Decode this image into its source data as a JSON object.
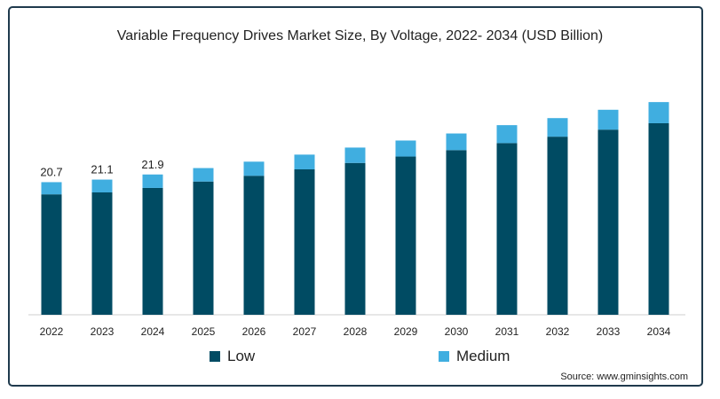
{
  "colors": {
    "low": "#004b63",
    "medium": "#40aee0",
    "border": "#1f3a4d",
    "text": "#222222"
  },
  "legend": {
    "low": "Low",
    "medium": "Medium"
  },
  "source": "Source: www.gminsights.com",
  "chart_data": {
    "type": "bar",
    "stacked": true,
    "title": "Variable Frequency Drives Market Size, By Voltage, 2022- 2034 (USD Billion)",
    "xlabel": "",
    "ylabel": "",
    "categories": [
      "2022",
      "2023",
      "2024",
      "2025",
      "2026",
      "2027",
      "2028",
      "2029",
      "2030",
      "2031",
      "2032",
      "2033",
      "2034"
    ],
    "series": [
      {
        "name": "Low",
        "values": [
          18.8,
          19.1,
          19.8,
          20.8,
          21.7,
          22.7,
          23.7,
          24.7,
          25.7,
          26.8,
          27.8,
          28.9,
          29.9
        ]
      },
      {
        "name": "Medium",
        "values": [
          1.9,
          2.0,
          2.1,
          2.1,
          2.2,
          2.3,
          2.4,
          2.5,
          2.6,
          2.8,
          2.9,
          3.1,
          3.3
        ]
      }
    ],
    "data_labels": [
      "20.7",
      "21.1",
      "21.9",
      "",
      "",
      "",
      "",
      "",
      "",
      "",
      "",
      "",
      ""
    ],
    "ylim": [
      0,
      40
    ],
    "grid": false,
    "legend_position": "bottom"
  }
}
